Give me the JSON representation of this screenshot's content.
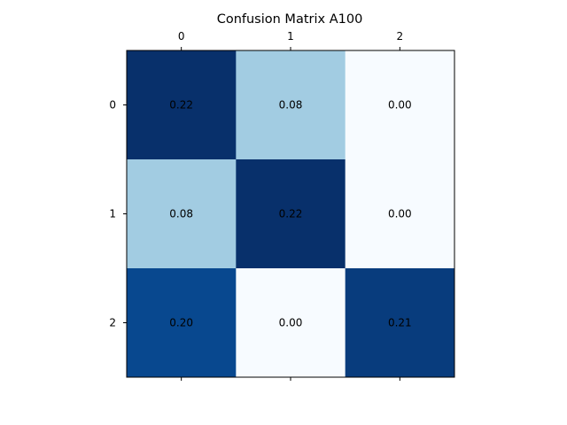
{
  "chart_data": {
    "type": "heatmap",
    "title": "Confusion Matrix A100",
    "x_categories": [
      "0",
      "1",
      "2"
    ],
    "y_categories": [
      "0",
      "1",
      "2"
    ],
    "values": [
      [
        0.22,
        0.08,
        0.0
      ],
      [
        0.08,
        0.22,
        0.0
      ],
      [
        0.2,
        0.0,
        0.21
      ]
    ],
    "value_labels": [
      [
        "0.22",
        "0.08",
        "0.00"
      ],
      [
        "0.08",
        "0.22",
        "0.00"
      ],
      [
        "0.20",
        "0.00",
        "0.21"
      ]
    ],
    "colormap": "Blues",
    "x_tick_position": "top and bottom",
    "grid": false,
    "legend": "none"
  },
  "colors": {
    "low": "#f7fbff",
    "mid": "#a6cee4",
    "high": "#08306b",
    "text": "#000000"
  }
}
